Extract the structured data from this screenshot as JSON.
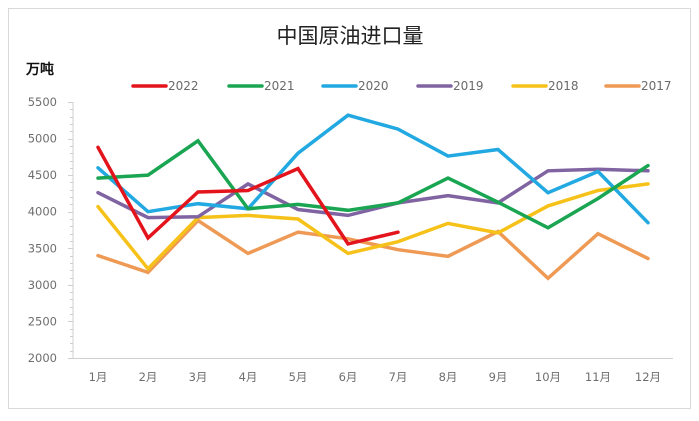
{
  "chart_data": {
    "type": "line",
    "title": "中国原油进口量",
    "ylabel": "万吨",
    "xlabel": "",
    "categories": [
      "1月",
      "2月",
      "3月",
      "4月",
      "5月",
      "6月",
      "7月",
      "8月",
      "9月",
      "10月",
      "11月",
      "12月"
    ],
    "ylim": [
      2000,
      5500
    ],
    "yticks": [
      2000,
      2500,
      3000,
      3500,
      4000,
      4500,
      5000,
      5500
    ],
    "grid": false,
    "legend_position": "top",
    "series": [
      {
        "name": "2022",
        "color": "#e3141c",
        "values": [
          4880,
          3640,
          4270,
          4290,
          4590,
          3560,
          3720,
          null,
          null,
          null,
          null,
          null
        ]
      },
      {
        "name": "2021",
        "color": "#1aa552",
        "values": [
          4460,
          4500,
          4970,
          4040,
          4100,
          4020,
          4120,
          4460,
          4130,
          3780,
          4180,
          4630
        ]
      },
      {
        "name": "2020",
        "color": "#22a9e1",
        "values": [
          4600,
          4000,
          4110,
          4040,
          4800,
          5320,
          5130,
          4760,
          4850,
          4260,
          4550,
          3850
        ]
      },
      {
        "name": "2019",
        "color": "#8064a2",
        "values": [
          4260,
          3920,
          3930,
          4380,
          4030,
          3950,
          4120,
          4220,
          4120,
          4560,
          4580,
          4560
        ]
      },
      {
        "name": "2018",
        "color": "#f6c21a",
        "values": [
          4070,
          3220,
          3920,
          3950,
          3900,
          3430,
          3590,
          3840,
          3710,
          4080,
          4290,
          4380
        ]
      },
      {
        "name": "2017",
        "color": "#ee9a55",
        "values": [
          3400,
          3170,
          3880,
          3430,
          3720,
          3630,
          3480,
          3390,
          3730,
          3090,
          3700,
          3360
        ]
      }
    ]
  }
}
